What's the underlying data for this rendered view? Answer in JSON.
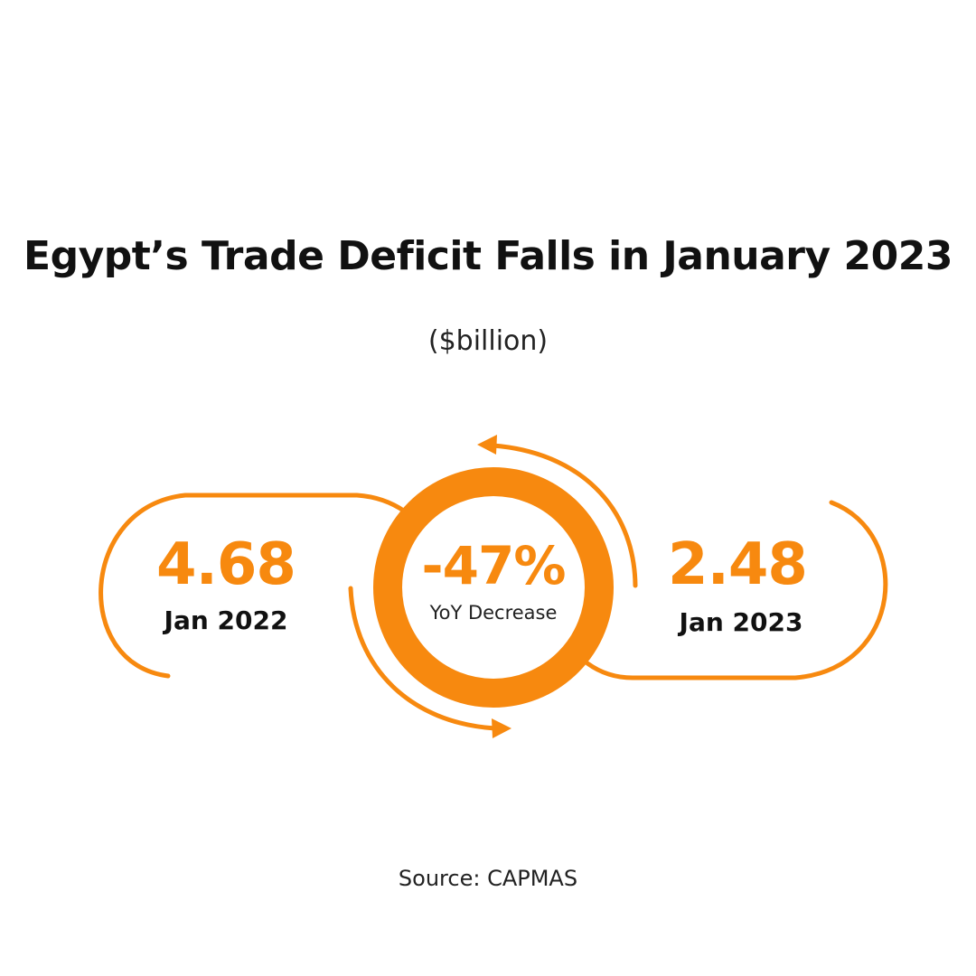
{
  "title": "Egypt’s Trade Deficit Falls in January 2023",
  "subtitle": "($billion)",
  "source": "Source: CAPMAS",
  "colors": {
    "accent": "#F7890F",
    "text": "#111111"
  },
  "chart_data": {
    "type": "bar",
    "unit": "$billion",
    "categories": [
      "Jan 2022",
      "Jan 2023"
    ],
    "values": [
      4.68,
      2.48
    ],
    "value_labels": [
      "4.68",
      "2.48"
    ],
    "change": {
      "value": -47,
      "label": "-47%",
      "description": "YoY Decrease"
    }
  }
}
